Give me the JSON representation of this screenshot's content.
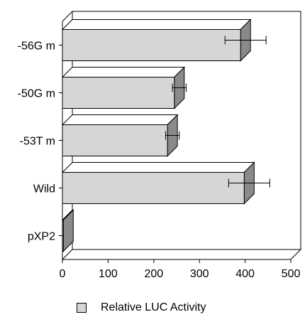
{
  "chart_data": {
    "type": "bar",
    "orientation": "horizontal",
    "style": "3d",
    "categories": [
      "-56G m",
      "-50G m",
      "-53T m",
      "Wild",
      "pXP2"
    ],
    "series": [
      {
        "name": "Relative LUC Activity",
        "values": [
          390,
          245,
          230,
          398,
          2
        ],
        "error": [
          45,
          15,
          15,
          45,
          0
        ]
      }
    ],
    "xlim": [
      0,
      500
    ],
    "xticks": [
      0,
      100,
      200,
      300,
      400,
      500
    ],
    "xlabel": "",
    "ylabel": "",
    "title": "",
    "legend_position": "bottom",
    "grid": false,
    "colors": {
      "bar_front": "#d6d6d6",
      "bar_top": "#ffffff",
      "bar_side": "#8a8a8a"
    }
  }
}
